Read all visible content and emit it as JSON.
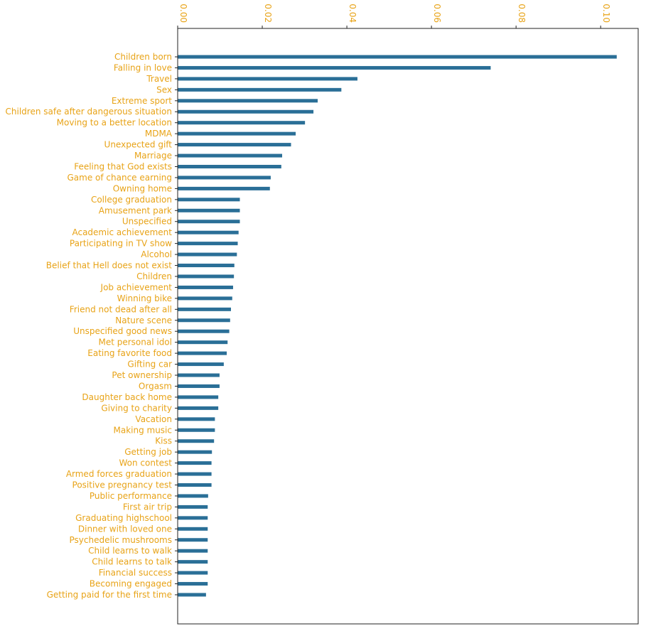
{
  "chart_data": {
    "type": "bar",
    "orientation": "horizontal",
    "title": "",
    "xlabel": "",
    "ylabel": "",
    "xlim": [
      0,
      0.109
    ],
    "x_ticks": [
      0.0,
      0.02,
      0.04,
      0.06,
      0.08,
      0.1
    ],
    "x_tick_labels": [
      "0.00",
      "0.02",
      "0.04",
      "0.06",
      "0.08",
      "0.10"
    ],
    "x_axis_position": "top",
    "grid": false,
    "categories": [
      "Children born",
      "Falling in love",
      "Travel",
      "Sex",
      "Extreme sport",
      "Children safe after dangerous situation",
      "Moving to a better location",
      "MDMA",
      "Unexpected gift",
      "Marriage",
      "Feeling that God exists",
      "Game of chance earning",
      "Owning home",
      "College graduation",
      "Amusement park",
      "Unspecified",
      "Academic achievement",
      "Participating in TV show",
      "Alcohol",
      "Belief that Hell does not exist",
      "Children",
      "Job achievement",
      "Winning bike",
      "Friend not dead after all",
      "Nature scene",
      "Unspecified good news",
      "Met personal idol",
      "Eating favorite food",
      "Gifting car",
      "Pet ownership",
      "Orgasm",
      "Daughter back home",
      "Giving to charity",
      "Vacation",
      "Making music",
      "Kiss",
      "Getting job",
      "Won contest",
      "Armed forces graduation",
      "Positive pregnancy test",
      "Public performance",
      "First air trip",
      "Graduating highschool",
      "Dinner with loved one",
      "Psychedelic mushrooms",
      "Child learns to walk",
      "Child learns to talk",
      "Financial success",
      "Becoming engaged",
      "Getting paid for the first time"
    ],
    "values": [
      0.1038,
      0.074,
      0.0425,
      0.0387,
      0.0331,
      0.0321,
      0.0301,
      0.0279,
      0.0268,
      0.0247,
      0.0245,
      0.022,
      0.0218,
      0.0147,
      0.0147,
      0.0147,
      0.0144,
      0.0142,
      0.014,
      0.0134,
      0.0133,
      0.0131,
      0.0129,
      0.0126,
      0.0124,
      0.0122,
      0.0118,
      0.0116,
      0.0109,
      0.0099,
      0.0099,
      0.0096,
      0.0096,
      0.0088,
      0.0088,
      0.0086,
      0.0081,
      0.008,
      0.008,
      0.008,
      0.0072,
      0.0071,
      0.0071,
      0.0071,
      0.0071,
      0.0071,
      0.0071,
      0.0071,
      0.0071,
      0.0067
    ],
    "colors": {
      "bar": "#2a6f97",
      "label": "#e8a317",
      "axis": "#222222"
    }
  }
}
